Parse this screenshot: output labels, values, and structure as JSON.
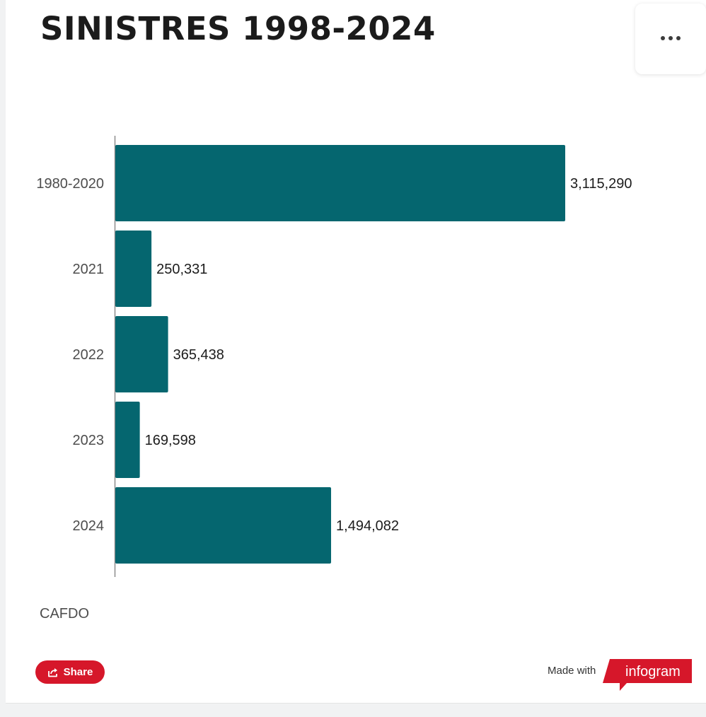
{
  "title": "SINISTRES 1998-2024",
  "menu": {
    "icon": "more-horizontal-icon"
  },
  "chart_data": {
    "type": "bar",
    "orientation": "horizontal",
    "title": "SINISTRES 1998-2024",
    "categories": [
      "1980-2020",
      "2021",
      "2022",
      "2023",
      "2024"
    ],
    "values": [
      3115290,
      250331,
      365438,
      169598,
      1494082
    ],
    "value_labels": [
      "3,115,290",
      "250,331",
      "365,438",
      "169,598",
      "1,494,082"
    ],
    "xlabel": "",
    "ylabel": "",
    "xlim": [
      0,
      3115290
    ],
    "grid": false,
    "legend": "none",
    "bar_color": "#05666f"
  },
  "source": "CAFDO",
  "footer": {
    "share_label": "Share",
    "share_icon": "share-icon",
    "made_with": "Made with",
    "brand": "infogram",
    "brand_color": "#d6172a"
  }
}
